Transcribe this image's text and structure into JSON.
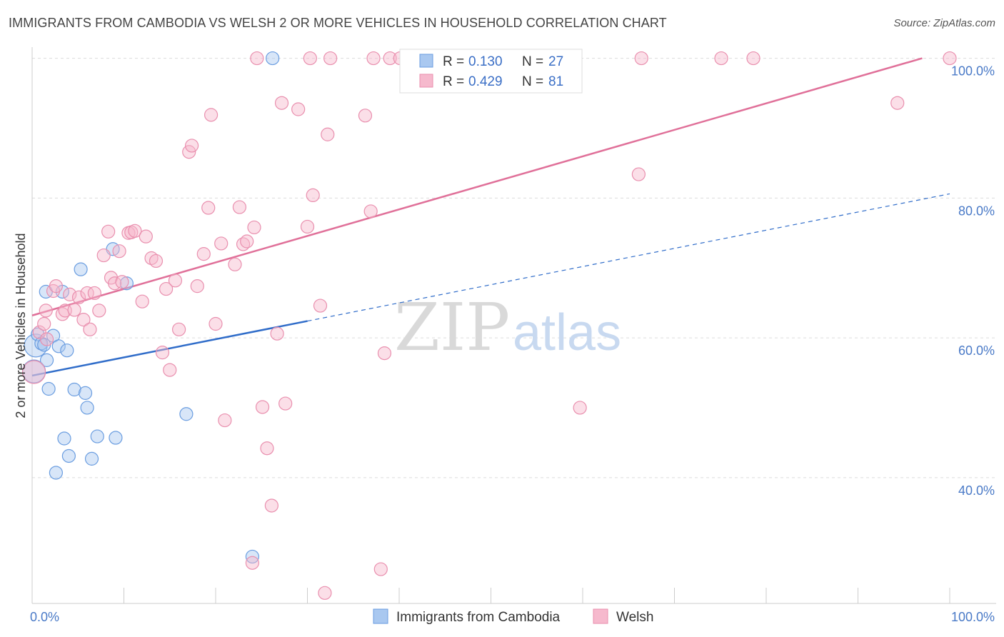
{
  "title": "IMMIGRANTS FROM CAMBODIA VS WELSH 2 OR MORE VEHICLES IN HOUSEHOLD CORRELATION CHART",
  "source": "Source: ZipAtlas.com",
  "watermark": {
    "zip": "ZIP",
    "atlas": "atlas"
  },
  "colors": {
    "blue_fill": "#a9c8f0",
    "blue_stroke": "#6a9de0",
    "blue_line": "#2f6cc9",
    "pink_fill": "#f6b9cd",
    "pink_stroke": "#e98fae",
    "pink_line": "#e07099",
    "grid": "#dcdcdc",
    "tick_text": "#4a7ac7"
  },
  "legend": {
    "rows": [
      {
        "r_label": "R =",
        "r_value": "0.130",
        "n_label": "N =",
        "n_value": "27",
        "color": "blue"
      },
      {
        "r_label": "R =",
        "r_value": "0.429",
        "n_label": "N =",
        "n_value": "81",
        "color": "pink"
      }
    ]
  },
  "chart_data": {
    "type": "scatter",
    "title": "IMMIGRANTS FROM CAMBODIA VS WELSH 2 OR MORE VEHICLES IN HOUSEHOLD CORRELATION CHART",
    "xlabel": "",
    "ylabel": "2 or more Vehicles in Household",
    "xlim": [
      0,
      100
    ],
    "ylim": [
      22,
      102
    ],
    "x_tick_labels": [
      "0.0%",
      "100.0%"
    ],
    "y_ticks": [
      40,
      60,
      80,
      100
    ],
    "y_tick_labels": [
      "40.0%",
      "60.0%",
      "80.0%",
      "100.0%"
    ],
    "grid": true,
    "legend_placement": "top-center",
    "series": [
      {
        "name": "Immigrants from Cambodia",
        "color": "blue",
        "trend": {
          "x": [
            0,
            30
          ],
          "y": [
            54.6,
            62.4
          ],
          "dashed_to": [
            100,
            80.6
          ]
        },
        "points": [
          [
            0.2,
            55.2
          ],
          [
            0.4,
            58.9
          ],
          [
            0.6,
            60.5
          ],
          [
            1.0,
            59.2
          ],
          [
            1.3,
            59.0
          ],
          [
            1.5,
            66.6
          ],
          [
            1.6,
            56.8
          ],
          [
            1.8,
            52.7
          ],
          [
            2.3,
            60.3
          ],
          [
            2.6,
            40.7
          ],
          [
            2.9,
            58.8
          ],
          [
            3.3,
            66.6
          ],
          [
            3.5,
            45.6
          ],
          [
            3.8,
            58.2
          ],
          [
            4.0,
            43.1
          ],
          [
            4.6,
            52.6
          ],
          [
            5.3,
            69.8
          ],
          [
            5.8,
            52.1
          ],
          [
            6.0,
            50.0
          ],
          [
            6.5,
            42.7
          ],
          [
            7.1,
            45.9
          ],
          [
            8.8,
            72.7
          ],
          [
            9.1,
            45.7
          ],
          [
            10.3,
            67.8
          ],
          [
            16.8,
            49.1
          ],
          [
            24.0,
            28.7
          ],
          [
            26.2,
            100.0
          ]
        ]
      },
      {
        "name": "Welsh",
        "color": "pink",
        "trend": {
          "x": [
            0,
            97
          ],
          "y": [
            63.2,
            100.0
          ]
        },
        "points": [
          [
            0.2,
            55.1
          ],
          [
            0.8,
            60.8
          ],
          [
            1.3,
            62.0
          ],
          [
            1.5,
            63.9
          ],
          [
            1.6,
            59.8
          ],
          [
            2.3,
            66.7
          ],
          [
            2.6,
            67.4
          ],
          [
            3.3,
            63.4
          ],
          [
            3.6,
            63.9
          ],
          [
            4.1,
            66.2
          ],
          [
            4.6,
            64.0
          ],
          [
            5.1,
            65.8
          ],
          [
            5.6,
            62.6
          ],
          [
            6.0,
            66.4
          ],
          [
            6.3,
            61.2
          ],
          [
            6.8,
            66.4
          ],
          [
            7.3,
            63.9
          ],
          [
            7.8,
            71.8
          ],
          [
            8.3,
            75.2
          ],
          [
            8.6,
            68.6
          ],
          [
            9.0,
            67.8
          ],
          [
            9.5,
            72.4
          ],
          [
            9.8,
            68.0
          ],
          [
            10.5,
            75.0
          ],
          [
            10.8,
            75.1
          ],
          [
            11.2,
            75.3
          ],
          [
            12.0,
            65.2
          ],
          [
            12.4,
            74.5
          ],
          [
            13.0,
            71.4
          ],
          [
            13.5,
            71.0
          ],
          [
            14.2,
            57.9
          ],
          [
            14.6,
            67.0
          ],
          [
            15.0,
            55.4
          ],
          [
            15.6,
            68.2
          ],
          [
            16.0,
            61.2
          ],
          [
            17.1,
            86.6
          ],
          [
            17.4,
            87.5
          ],
          [
            18.0,
            67.4
          ],
          [
            18.7,
            72.0
          ],
          [
            19.2,
            78.6
          ],
          [
            19.5,
            91.9
          ],
          [
            20.0,
            62.0
          ],
          [
            20.6,
            73.5
          ],
          [
            21.0,
            48.2
          ],
          [
            22.1,
            70.5
          ],
          [
            22.6,
            78.7
          ],
          [
            23.0,
            73.4
          ],
          [
            23.4,
            73.8
          ],
          [
            24.0,
            27.8
          ],
          [
            24.2,
            75.8
          ],
          [
            24.5,
            100.0
          ],
          [
            25.1,
            50.1
          ],
          [
            25.6,
            44.2
          ],
          [
            26.1,
            36.0
          ],
          [
            26.7,
            60.6
          ],
          [
            27.2,
            93.6
          ],
          [
            27.6,
            50.6
          ],
          [
            29.0,
            92.7
          ],
          [
            30.0,
            75.9
          ],
          [
            30.3,
            100.0
          ],
          [
            30.6,
            80.4
          ],
          [
            31.4,
            64.6
          ],
          [
            31.9,
            23.5
          ],
          [
            32.2,
            89.1
          ],
          [
            32.5,
            100.0
          ],
          [
            36.3,
            91.8
          ],
          [
            36.9,
            78.1
          ],
          [
            37.2,
            100.0
          ],
          [
            38.0,
            26.9
          ],
          [
            38.4,
            57.8
          ],
          [
            39.0,
            100.0
          ],
          [
            43.0,
            100.0
          ],
          [
            48.3,
            100.0
          ],
          [
            59.7,
            50.0
          ],
          [
            66.1,
            83.4
          ],
          [
            66.4,
            100.0
          ],
          [
            75.1,
            100.0
          ],
          [
            78.6,
            100.0
          ],
          [
            94.3,
            93.6
          ],
          [
            100.0,
            100.0
          ],
          [
            40.1,
            100.0
          ]
        ]
      }
    ]
  }
}
